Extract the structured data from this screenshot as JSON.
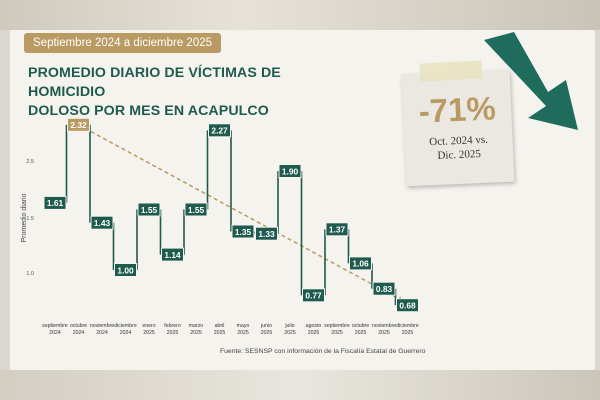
{
  "badge": "Septiembre 2024 a diciembre 2025",
  "title_line1": "PROMEDIO DIARIO DE VÍCTIMAS DE HOMICIDIO",
  "title_line2": "DOLOSO POR MES EN ACAPULCO",
  "stat": {
    "value": "-71%",
    "line1": "Oct. 2024 vs.",
    "line2": "Dic. 2025"
  },
  "source": "Fuente: SESNSP con información de la Fiscalía Estatal de Guerrero",
  "colors": {
    "line": "#1f5a4e",
    "label_bg": "#1f5a4e",
    "highlight_bg": "#b99a63",
    "trend": "#b99a63",
    "arrow": "#1f6b5c"
  },
  "chart_data": {
    "type": "line",
    "step": true,
    "ylabel": "Promedio diario",
    "y_ticks": [
      "2.5",
      "1.5",
      "1.0"
    ],
    "categories": [
      [
        "septiembre",
        "2024"
      ],
      [
        "octubre",
        "2024"
      ],
      [
        "noviembre",
        "2024"
      ],
      [
        "diciembre",
        "2024"
      ],
      [
        "enero",
        "2025"
      ],
      [
        "febrero",
        "2025"
      ],
      [
        "marzo",
        "2025"
      ],
      [
        "abril",
        "2025"
      ],
      [
        "mayo",
        "2025"
      ],
      [
        "junio",
        "2025"
      ],
      [
        "julio",
        "2025"
      ],
      [
        "agosto",
        "2025"
      ],
      [
        "septiembre",
        "2025"
      ],
      [
        "octubre",
        "2025"
      ],
      [
        "noviembre",
        "2025"
      ],
      [
        "diciembre",
        "2025"
      ]
    ],
    "values": [
      1.61,
      2.32,
      1.43,
      1.0,
      1.55,
      1.14,
      1.55,
      2.27,
      1.35,
      1.33,
      1.9,
      0.77,
      1.37,
      1.06,
      0.83,
      0.68
    ],
    "labels": [
      "1.61",
      "2.32",
      "1.43",
      "1.00",
      "1.55",
      "1.14",
      "1.55",
      "2.27",
      "1.35",
      "1.33",
      "1.90",
      "0.77",
      "1.37",
      "1.06",
      "0.83",
      "0.68"
    ],
    "highlight_index": 1,
    "trend": {
      "from_index": 1,
      "to_index": 15,
      "style": "dashed-arrow"
    },
    "decorative_arrow": "down-right"
  }
}
